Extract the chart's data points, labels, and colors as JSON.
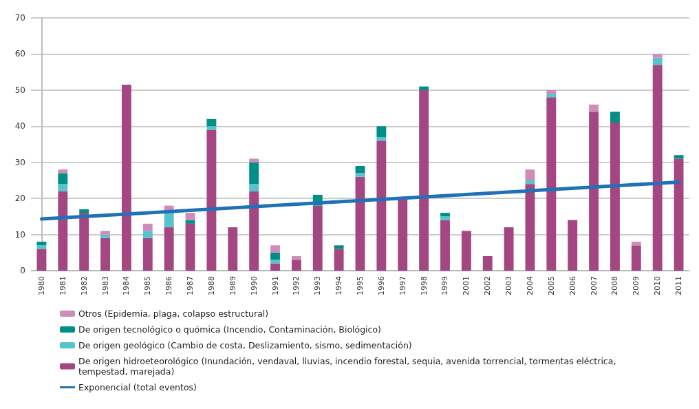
{
  "chart_data": {
    "type": "bar",
    "stacked": true,
    "categories": [
      "1980",
      "1981",
      "1982",
      "1983",
      "1984",
      "1985",
      "1986",
      "1987",
      "1988",
      "1989",
      "1990",
      "1991",
      "1992",
      "1993",
      "1994",
      "1995",
      "1996",
      "1997",
      "1998",
      "1999",
      "2001",
      "2002",
      "2003",
      "2004",
      "2005",
      "2006",
      "2007",
      "2008",
      "2009",
      "2010",
      "2011"
    ],
    "series": [
      {
        "name": "De origen hidroeteorológico (Inundación, vendaval, lluvias, incendio forestal, sequia, avenida torrencial, tormentas eléctrica, tempestad, marejada)",
        "color": "#a34682",
        "values": [
          6,
          22,
          16,
          9,
          51.5,
          9,
          12,
          13,
          39,
          12,
          22,
          2,
          3,
          18,
          6,
          26,
          36,
          20,
          50,
          14,
          11,
          4,
          12,
          24,
          48,
          14,
          44,
          41,
          7,
          57,
          31
        ]
      },
      {
        "name": "De origen geológico (Cambio de costa, Deslizamiento, sismo, sedimentación)",
        "color": "#55c4cf",
        "values": [
          1,
          2,
          0,
          1,
          0,
          2,
          4,
          0,
          1,
          0,
          2,
          1,
          0,
          0,
          0,
          1,
          1,
          0,
          0,
          1,
          0,
          0,
          0,
          1,
          1,
          0,
          0,
          0,
          0,
          2,
          0
        ]
      },
      {
        "name": "De origen tecnológico o quómica (Incendio, Contaminación, Biológico)",
        "color": "#008f86",
        "values": [
          1,
          3,
          1,
          0,
          0,
          0,
          0,
          1,
          2,
          0,
          6,
          2,
          0,
          3,
          1,
          2,
          3,
          0,
          1,
          1,
          0,
          0,
          0,
          0,
          0,
          0,
          0,
          3,
          0,
          0,
          1
        ]
      },
      {
        "name": "Otros (Epidemia, plaga, colapso estructural)",
        "color": "#d08bb8",
        "values": [
          0,
          1,
          0,
          1,
          0,
          2,
          2,
          2,
          0,
          0,
          1,
          2,
          1,
          0,
          0,
          0,
          0,
          0,
          0,
          0,
          0,
          0,
          0,
          3,
          1,
          0,
          2,
          0,
          1,
          1,
          0
        ]
      },
      {
        "name": "Exponencial (total eventos)",
        "type": "line",
        "color": "#1f72b8",
        "values": [
          14.3,
          null,
          null,
          null,
          null,
          null,
          null,
          null,
          null,
          null,
          null,
          null,
          null,
          null,
          null,
          null,
          null,
          null,
          null,
          null,
          null,
          null,
          null,
          null,
          null,
          null,
          null,
          null,
          null,
          null,
          24.5
        ]
      }
    ],
    "ylim": [
      0,
      70
    ],
    "yticks": [
      0,
      10,
      20,
      30,
      40,
      50,
      60,
      70
    ],
    "grid": "y",
    "legend": "bottom",
    "marker": "none"
  }
}
